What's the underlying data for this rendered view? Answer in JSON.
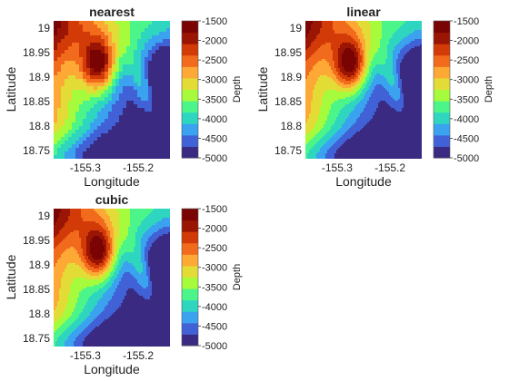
{
  "chart_data": [
    {
      "type": "heatmap",
      "title": "nearest",
      "xlabel": "Longitude",
      "ylabel": "Latitude",
      "xticks": [
        {
          "value": -155.3,
          "label": "-155.3"
        },
        {
          "value": -155.2,
          "label": "-155.2"
        }
      ],
      "yticks": [
        {
          "value": 18.75,
          "label": "18.75"
        },
        {
          "value": 18.8,
          "label": "18.8"
        },
        {
          "value": 18.85,
          "label": "18.85"
        },
        {
          "value": 18.9,
          "label": "18.9"
        },
        {
          "value": 18.95,
          "label": "18.95"
        },
        {
          "value": 19.0,
          "label": "19"
        }
      ],
      "xlim": [
        -155.36,
        -155.14
      ],
      "ylim": [
        18.735,
        19.015
      ],
      "colorbar": {
        "label": "Depth",
        "range": [
          -5000,
          -1500
        ],
        "ticks": [
          "-1500",
          "-2000",
          "-2500",
          "-3000",
          "-3500",
          "-4000",
          "-4500",
          "-5000"
        ]
      },
      "interpolation": "nearest",
      "grid": false
    },
    {
      "type": "heatmap",
      "title": "linear",
      "xlabel": "Longitude",
      "ylabel": "Latitude",
      "xticks": [
        {
          "value": -155.3,
          "label": "-155.3"
        },
        {
          "value": -155.2,
          "label": "-155.2"
        }
      ],
      "yticks": [
        {
          "value": 18.75,
          "label": "18.75"
        },
        {
          "value": 18.8,
          "label": "18.8"
        },
        {
          "value": 18.85,
          "label": "18.85"
        },
        {
          "value": 18.9,
          "label": "18.9"
        },
        {
          "value": 18.95,
          "label": "18.95"
        },
        {
          "value": 19.0,
          "label": "19"
        }
      ],
      "xlim": [
        -155.36,
        -155.14
      ],
      "ylim": [
        18.735,
        19.015
      ],
      "colorbar": {
        "label": "Depth",
        "range": [
          -5000,
          -1500
        ],
        "ticks": [
          "-1500",
          "-2000",
          "-2500",
          "-3000",
          "-3500",
          "-4000",
          "-4500",
          "-5000"
        ]
      },
      "interpolation": "linear",
      "grid": false
    },
    {
      "type": "heatmap",
      "title": "cubic",
      "xlabel": "Longitude",
      "ylabel": "Latitude",
      "xticks": [
        {
          "value": -155.3,
          "label": "-155.3"
        },
        {
          "value": -155.2,
          "label": "-155.2"
        }
      ],
      "yticks": [
        {
          "value": 18.75,
          "label": "18.75"
        },
        {
          "value": 18.8,
          "label": "18.8"
        },
        {
          "value": 18.85,
          "label": "18.85"
        },
        {
          "value": 18.9,
          "label": "18.9"
        },
        {
          "value": 18.95,
          "label": "18.95"
        },
        {
          "value": 19.0,
          "label": "19"
        }
      ],
      "xlim": [
        -155.36,
        -155.14
      ],
      "ylim": [
        18.735,
        19.015
      ],
      "colorbar": {
        "label": "Depth",
        "range": [
          -5000,
          -1500
        ],
        "ticks": [
          "-1500",
          "-2000",
          "-2500",
          "-3000",
          "-3500",
          "-4000",
          "-4500",
          "-5000"
        ]
      },
      "interpolation": "cubic",
      "grid": false
    }
  ],
  "colors": {
    "levels": [
      "#3a2a82",
      "#4062d6",
      "#3ba2f0",
      "#2ed6c0",
      "#4cf58a",
      "#a5fb3c",
      "#e3dc37",
      "#fea935",
      "#f26a1c",
      "#d23a07",
      "#9a1503",
      "#7a0403"
    ]
  }
}
